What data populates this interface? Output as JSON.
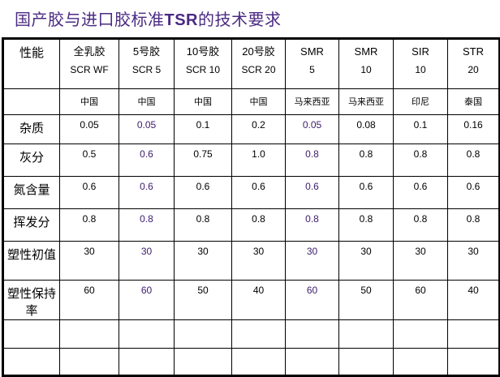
{
  "title": {
    "prefix": "国产胶与进口胶标准",
    "bold": "TSR",
    "suffix": "的技术要求"
  },
  "accent_color": "#3c1c6c",
  "columns": [
    {
      "l1": "性能",
      "l2": ""
    },
    {
      "l1": "全乳胶",
      "l2": "SCR WF",
      "country": "中国"
    },
    {
      "l1": "5号胶",
      "l2": "SCR 5",
      "country": "中国"
    },
    {
      "l1": "10号胶",
      "l2": "SCR 10",
      "country": "中国"
    },
    {
      "l1": "20号胶",
      "l2": "SCR 20",
      "country": "中国"
    },
    {
      "l1": "SMR",
      "l2": "5",
      "country": "马来西亚"
    },
    {
      "l1": "SMR",
      "l2": "10",
      "country": "马来西亚"
    },
    {
      "l1": "SIR",
      "l2": "10",
      "country": "印尼"
    },
    {
      "l1": "STR",
      "l2": "20",
      "country": "泰国"
    }
  ],
  "rows": [
    {
      "label": "杂质",
      "values": [
        "0.05",
        "0.05",
        "0.1",
        "0.2",
        "0.05",
        "0.08",
        "0.1",
        "0.16"
      ]
    },
    {
      "label": "灰分",
      "values": [
        "0.5",
        "0.6",
        "0.75",
        "1.0",
        "0.8",
        "0.8",
        "0.8",
        "0.8"
      ]
    },
    {
      "label": "氮含量",
      "values": [
        "0.6",
        "0.6",
        "0.6",
        "0.6",
        "0.6",
        "0.6",
        "0.6",
        "0.6"
      ]
    },
    {
      "label": "挥发分",
      "values": [
        "0.8",
        "0.8",
        "0.8",
        "0.8",
        "0.8",
        "0.8",
        "0.8",
        "0.8"
      ]
    },
    {
      "label": "塑性初值",
      "values": [
        "30",
        "30",
        "30",
        "30",
        "30",
        "30",
        "30",
        "30"
      ]
    },
    {
      "label": "塑性保持率",
      "values": [
        "60",
        "60",
        "50",
        "40",
        "60",
        "50",
        "60",
        "40"
      ]
    }
  ],
  "highlighted_columns": [
    2,
    5
  ]
}
